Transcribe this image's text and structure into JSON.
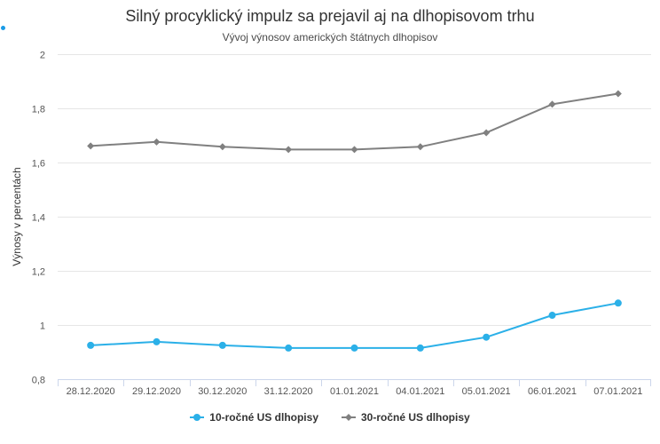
{
  "colors": {
    "series10": "#2bb0e8",
    "series30": "#808080",
    "grid": "#e6e6e6",
    "axis": "#ccd6eb",
    "text": "#333333",
    "tick": "#555555",
    "accent": "#1a9be6"
  },
  "chart_data": {
    "type": "line",
    "title": "Silný procyklický impulz sa prejavil aj na dlhopisovom trhu",
    "subtitle": "Vývoj výnosov amerických štátnych dlhopisov",
    "xlabel": "",
    "ylabel": "Výnosy v percentách",
    "categories": [
      "28.12.2020",
      "29.12.2020",
      "30.12.2020",
      "31.12.2020",
      "01.01.2021",
      "04.01.2021",
      "05.01.2021",
      "06.01.2021",
      "07.01.2021"
    ],
    "ylim": [
      0.8,
      2
    ],
    "yticks": [
      0.8,
      1,
      1.2,
      1.4,
      1.6,
      1.8,
      2
    ],
    "ytick_labels": [
      "0,8",
      "1",
      "1,2",
      "1,4",
      "1,6",
      "1,8",
      "2"
    ],
    "grid": true,
    "legend_position": "bottom-center",
    "series": [
      {
        "name": "10-ročné US dlhopisy",
        "marker": "circle",
        "color": "#2bb0e8",
        "values": [
          0.925,
          0.938,
          0.925,
          0.915,
          0.915,
          0.915,
          0.955,
          1.036,
          1.081
        ]
      },
      {
        "name": "30-ročné US dlhopisy",
        "marker": "diamond",
        "color": "#808080",
        "values": [
          1.661,
          1.676,
          1.658,
          1.648,
          1.648,
          1.658,
          1.71,
          1.815,
          1.854
        ]
      }
    ]
  }
}
